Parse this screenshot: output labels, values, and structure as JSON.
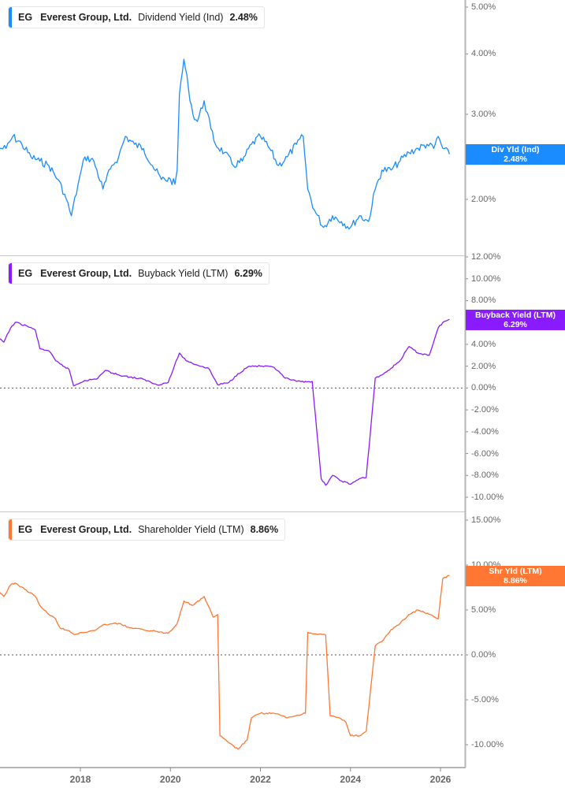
{
  "chart_data": [
    {
      "type": "line",
      "panel": "dividend",
      "title": "EG Everest Group, Ltd. Dividend Yield (Ind) 2.48%",
      "legend": {
        "ticker": "EG",
        "company": "Everest Group, Ltd.",
        "metric": "Dividend Yield (Ind)",
        "value": "2.48%"
      },
      "flag": {
        "label": "Div Yld (Ind)",
        "value": "2.48%"
      },
      "color": "#1a8cff",
      "yscale": "log",
      "ylim": [
        1.6,
        5.0
      ],
      "yticks": [
        "5.00%",
        "4.00%",
        "3.00%",
        "2.00%"
      ],
      "ytick_values": [
        5.0,
        4.0,
        3.0,
        2.0
      ],
      "zero_line": false,
      "x": [
        2016.2,
        2016.35,
        2016.5,
        2016.7,
        2016.9,
        2017.1,
        2017.3,
        2017.5,
        2017.65,
        2017.8,
        2017.95,
        2018.1,
        2018.3,
        2018.5,
        2018.7,
        2018.85,
        2019.0,
        2019.2,
        2019.4,
        2019.6,
        2019.8,
        2020.0,
        2020.1,
        2020.15,
        2020.2,
        2020.3,
        2020.4,
        2020.5,
        2020.6,
        2020.75,
        2020.9,
        2021.0,
        2021.2,
        2021.4,
        2021.6,
        2021.8,
        2022.0,
        2022.2,
        2022.4,
        2022.6,
        2022.8,
        2022.95,
        2023.05,
        2023.2,
        2023.4,
        2023.6,
        2023.8,
        2024.0,
        2024.2,
        2024.4,
        2024.55,
        2024.7,
        2024.9,
        2025.1,
        2025.3,
        2025.5,
        2025.7,
        2025.85,
        2025.95,
        2026.05,
        2026.2
      ],
      "values": [
        2.55,
        2.55,
        2.7,
        2.6,
        2.45,
        2.4,
        2.35,
        2.2,
        2.05,
        1.85,
        2.15,
        2.45,
        2.4,
        2.1,
        2.35,
        2.45,
        2.7,
        2.6,
        2.55,
        2.35,
        2.2,
        2.2,
        2.15,
        2.3,
        3.3,
        3.9,
        3.4,
        3.0,
        2.9,
        3.2,
        2.8,
        2.6,
        2.5,
        2.35,
        2.4,
        2.6,
        2.7,
        2.55,
        2.35,
        2.45,
        2.6,
        2.7,
        2.1,
        1.9,
        1.75,
        1.85,
        1.8,
        1.75,
        1.85,
        1.8,
        2.1,
        2.3,
        2.3,
        2.4,
        2.5,
        2.55,
        2.6,
        2.55,
        2.7,
        2.55,
        2.48
      ]
    },
    {
      "type": "line",
      "panel": "buyback",
      "title": "EG Everest Group, Ltd. Buyback Yield (LTM) 6.29%",
      "legend": {
        "ticker": "EG",
        "company": "Everest Group, Ltd.",
        "metric": "Buyback Yield (LTM)",
        "value": "6.29%"
      },
      "flag": {
        "label": "Buyback Yield (LTM)",
        "value": "6.29%"
      },
      "color": "#8a1aff",
      "yscale": "linear",
      "ylim": [
        -11,
        12
      ],
      "yticks": [
        "12.00%",
        "10.00%",
        "8.00%",
        "6.00%",
        "4.00%",
        "2.00%",
        "0.00%",
        "-2.00%",
        "-4.00%",
        "-6.00%",
        "-8.00%",
        "-10.00%"
      ],
      "ytick_values": [
        12,
        10,
        8,
        6,
        4,
        2,
        0,
        -2,
        -4,
        -6,
        -8,
        -10
      ],
      "zero_line": true,
      "x": [
        2016.2,
        2016.3,
        2016.45,
        2016.55,
        2016.8,
        2017.0,
        2017.1,
        2017.3,
        2017.45,
        2017.55,
        2017.75,
        2017.85,
        2018.1,
        2018.35,
        2018.55,
        2018.85,
        2019.1,
        2019.4,
        2019.7,
        2019.95,
        2020.2,
        2020.35,
        2020.6,
        2020.85,
        2021.05,
        2021.3,
        2021.5,
        2021.75,
        2022.0,
        2022.3,
        2022.55,
        2022.8,
        2023.0,
        2023.15,
        2023.35,
        2023.45,
        2023.6,
        2023.8,
        2024.0,
        2024.2,
        2024.35,
        2024.55,
        2024.7,
        2024.9,
        2025.1,
        2025.3,
        2025.5,
        2025.75,
        2025.95,
        2026.05,
        2026.2
      ],
      "values": [
        4.5,
        4.2,
        5.5,
        6.0,
        5.7,
        5.3,
        3.6,
        3.4,
        2.5,
        2.2,
        1.7,
        0.2,
        0.7,
        0.8,
        1.6,
        1.2,
        1.0,
        0.8,
        0.3,
        0.5,
        3.2,
        2.5,
        2.1,
        1.8,
        0.3,
        0.5,
        1.3,
        2.0,
        2.0,
        1.9,
        0.9,
        0.6,
        0.6,
        0.6,
        -8.3,
        -8.9,
        -8.0,
        -8.5,
        -8.8,
        -8.3,
        -8.2,
        0.9,
        1.2,
        1.8,
        2.5,
        3.8,
        3.2,
        3.0,
        5.5,
        6.0,
        6.29
      ]
    },
    {
      "type": "line",
      "panel": "shareholder",
      "title": "EG Everest Group, Ltd. Shareholder Yield (LTM) 8.86%",
      "legend": {
        "ticker": "EG",
        "company": "Everest Group, Ltd.",
        "metric": "Shareholder Yield (LTM)",
        "value": "8.86%"
      },
      "flag": {
        "label": "Shr Yld (LTM)",
        "value": "8.86%"
      },
      "color": "#ff7733",
      "yscale": "linear",
      "ylim": [
        -12.6,
        15.6
      ],
      "yticks": [
        "15.00%",
        "10.00%",
        "5.00%",
        "0.00%",
        "-5.00%",
        "-10.00%"
      ],
      "ytick_values": [
        15,
        10,
        5,
        0,
        -5,
        -10
      ],
      "zero_line": true,
      "x": [
        2016.2,
        2016.3,
        2016.45,
        2016.55,
        2016.8,
        2017.0,
        2017.1,
        2017.3,
        2017.45,
        2017.55,
        2017.75,
        2017.85,
        2018.1,
        2018.35,
        2018.55,
        2018.85,
        2019.1,
        2019.4,
        2019.7,
        2019.95,
        2020.15,
        2020.3,
        2020.5,
        2020.75,
        2020.95,
        2021.05,
        2021.1,
        2021.3,
        2021.5,
        2021.7,
        2021.8,
        2022.0,
        2022.3,
        2022.6,
        2023.0,
        2023.05,
        2023.3,
        2023.45,
        2023.55,
        2023.75,
        2023.9,
        2024.0,
        2024.2,
        2024.35,
        2024.55,
        2024.7,
        2024.9,
        2025.1,
        2025.3,
        2025.5,
        2025.75,
        2025.95,
        2026.05,
        2026.2
      ],
      "values": [
        7.0,
        6.5,
        7.8,
        8.0,
        7.2,
        6.5,
        5.5,
        4.5,
        4.0,
        3.0,
        2.7,
        2.3,
        2.5,
        2.8,
        3.4,
        3.5,
        3.0,
        2.8,
        2.6,
        2.4,
        3.5,
        6.0,
        5.5,
        6.5,
        4.2,
        4.5,
        -9.0,
        -9.8,
        -10.5,
        -9.5,
        -7.0,
        -6.5,
        -6.5,
        -7.0,
        -6.5,
        2.5,
        2.3,
        2.2,
        -6.8,
        -7.0,
        -7.5,
        -9.0,
        -9.0,
        -8.5,
        1.0,
        1.5,
        2.8,
        3.5,
        4.5,
        5.0,
        4.5,
        4.0,
        8.5,
        8.86
      ]
    }
  ],
  "x_axis": {
    "ticks": [
      "2018",
      "2020",
      "2022",
      "2024",
      "2026"
    ],
    "tick_values": [
      2018,
      2020,
      2022,
      2024,
      2026
    ],
    "range": [
      2016.2,
      2026.6
    ]
  }
}
